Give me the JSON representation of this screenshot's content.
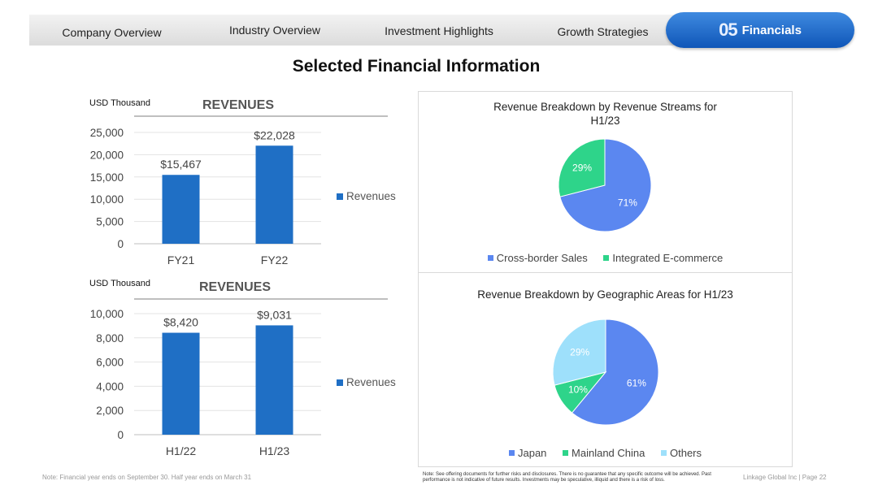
{
  "nav": {
    "tabs": [
      "Company Overview",
      "Industry Overview",
      "Investment Highlights",
      "Growth Strategies"
    ],
    "active_number": "05",
    "active_label": "Financials"
  },
  "page_title": "Selected Financial Information",
  "chart_data": [
    {
      "type": "bar",
      "title": "REVENUES",
      "unit_label": "USD Thousand",
      "categories": [
        "FY21",
        "FY22"
      ],
      "series": [
        {
          "name": "Revenues",
          "values": [
            15467,
            22028
          ]
        }
      ],
      "data_labels": [
        "$15,467",
        "$22,028"
      ],
      "yticks": [
        "0",
        "5,000",
        "10,000",
        "15,000",
        "20,000",
        "25,000"
      ],
      "ylim": [
        0,
        25000
      ],
      "grid": true,
      "legend_position": "right",
      "color": "#1f6fc5"
    },
    {
      "type": "bar",
      "title": "REVENUES",
      "unit_label": "USD Thousand",
      "categories": [
        "H1/22",
        "H1/23"
      ],
      "series": [
        {
          "name": "Revenues",
          "values": [
            8420,
            9031
          ]
        }
      ],
      "data_labels": [
        "$8,420",
        "$9,031"
      ],
      "yticks": [
        "0",
        "2,000",
        "4,000",
        "6,000",
        "8,000",
        "10,000"
      ],
      "ylim": [
        0,
        10000
      ],
      "grid": true,
      "legend_position": "right",
      "color": "#1f6fc5"
    },
    {
      "type": "pie",
      "title_lines": [
        "Revenue Breakdown by Revenue Streams for",
        "H1/23"
      ],
      "labels": [
        "Cross-border Sales",
        "Integrated E-commerce"
      ],
      "values": [
        71,
        29
      ],
      "value_labels": [
        "71%",
        "29%"
      ],
      "colors": [
        "#5b87f0",
        "#2ed48a"
      ],
      "legend_position": "bottom"
    },
    {
      "type": "pie",
      "title_lines": [
        "Revenue Breakdown by Geographic Areas for H1/23"
      ],
      "labels": [
        "Japan",
        "Mainland China",
        "Others"
      ],
      "values": [
        61,
        10,
        29
      ],
      "value_labels": [
        "61%",
        "10%",
        "29%"
      ],
      "colors": [
        "#5b87f0",
        "#2ed48a",
        "#9ee0fb"
      ],
      "legend_position": "bottom"
    }
  ],
  "footer": {
    "left_note": "Note: Financial year ends on September 30. Half year ends on March 31",
    "disclaimer": "Note: See offering documents for further risks and disclosures. There is no guarantee that any specific outcome will be achieved. Past performance is not indicative of future results. Investments may be speculative, illiquid and there is a risk of loss.",
    "page_label": "Linkage Global Inc | Page 22"
  }
}
